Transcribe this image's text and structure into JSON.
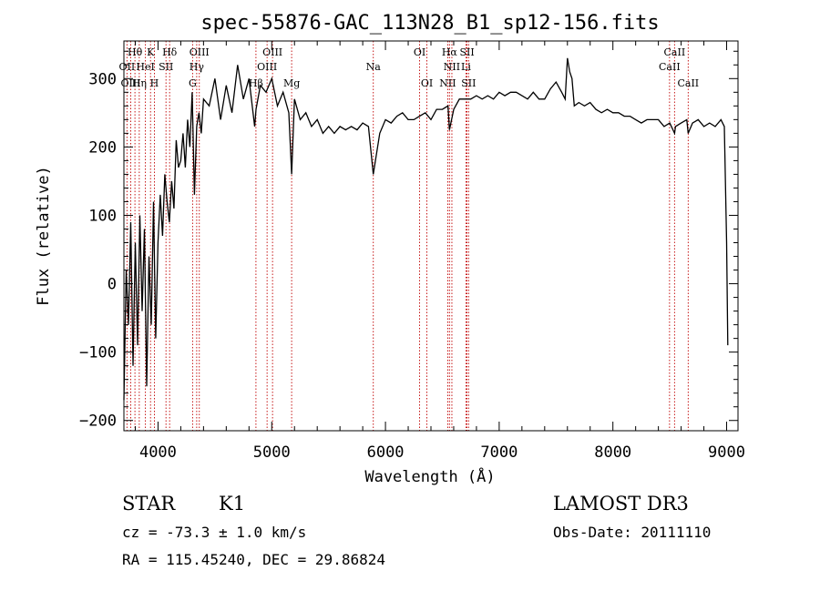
{
  "chart_data": {
    "type": "line",
    "title": "spec-55876-GAC_113N28_B1_sp12-156.fits",
    "xlabel": "Wavelength (Å)",
    "ylabel": "Flux (relative)",
    "xlim": [
      3700,
      9100
    ],
    "ylim": [
      -215,
      355
    ],
    "xticks": [
      4000,
      5000,
      6000,
      7000,
      8000,
      9000
    ],
    "yticks": [
      -200,
      -100,
      0,
      100,
      200,
      300
    ],
    "grid": false,
    "series": [
      {
        "color": "#000000",
        "x": [
          3700,
          3720,
          3740,
          3760,
          3780,
          3800,
          3820,
          3840,
          3860,
          3880,
          3900,
          3920,
          3940,
          3960,
          3980,
          4000,
          4020,
          4040,
          4060,
          4080,
          4100,
          4120,
          4140,
          4160,
          4180,
          4200,
          4220,
          4240,
          4260,
          4280,
          4300,
          4320,
          4340,
          4360,
          4380,
          4400,
          4450,
          4500,
          4550,
          4600,
          4650,
          4700,
          4750,
          4800,
          4850,
          4862,
          4900,
          4950,
          5000,
          5050,
          5100,
          5150,
          5175,
          5200,
          5250,
          5300,
          5350,
          5400,
          5450,
          5500,
          5550,
          5600,
          5650,
          5700,
          5750,
          5800,
          5850,
          5893,
          5950,
          6000,
          6050,
          6100,
          6150,
          6200,
          6250,
          6300,
          6350,
          6400,
          6450,
          6500,
          6550,
          6563,
          6600,
          6650,
          6700,
          6750,
          6800,
          6850,
          6900,
          6950,
          7000,
          7050,
          7100,
          7150,
          7200,
          7250,
          7300,
          7350,
          7400,
          7450,
          7500,
          7550,
          7580,
          7600,
          7620,
          7640,
          7660,
          7700,
          7750,
          7800,
          7850,
          7900,
          7950,
          8000,
          8050,
          8100,
          8150,
          8200,
          8250,
          8300,
          8350,
          8400,
          8450,
          8500,
          8542,
          8550,
          8600,
          8650,
          8662,
          8700,
          8750,
          8800,
          8850,
          8900,
          8950,
          8980,
          9000,
          9010
        ],
        "y": [
          -170,
          20,
          -60,
          90,
          -120,
          60,
          -90,
          100,
          -40,
          80,
          -150,
          40,
          -60,
          120,
          -80,
          60,
          130,
          70,
          160,
          120,
          90,
          150,
          110,
          210,
          170,
          180,
          220,
          170,
          240,
          200,
          280,
          130,
          230,
          250,
          220,
          270,
          260,
          300,
          240,
          290,
          250,
          320,
          270,
          300,
          230,
          255,
          290,
          280,
          300,
          260,
          280,
          250,
          160,
          270,
          240,
          250,
          230,
          240,
          220,
          230,
          220,
          230,
          225,
          230,
          225,
          235,
          230,
          160,
          220,
          240,
          235,
          245,
          250,
          240,
          240,
          245,
          250,
          240,
          255,
          255,
          260,
          225,
          255,
          270,
          270,
          270,
          275,
          270,
          275,
          270,
          280,
          275,
          280,
          280,
          275,
          270,
          280,
          270,
          270,
          285,
          295,
          280,
          270,
          330,
          310,
          300,
          260,
          265,
          260,
          265,
          255,
          250,
          255,
          250,
          250,
          245,
          245,
          240,
          235,
          240,
          240,
          240,
          230,
          235,
          220,
          230,
          235,
          240,
          220,
          235,
          240,
          230,
          235,
          230,
          240,
          230,
          60,
          -90
        ]
      }
    ],
    "line_labels": [
      {
        "label": "Hθ",
        "x": 3797,
        "row": 1
      },
      {
        "label": "K",
        "x": 3934,
        "row": 1
      },
      {
        "label": "Hδ",
        "x": 4102,
        "row": 1
      },
      {
        "label": "OIII",
        "x": 4363,
        "row": 1
      },
      {
        "label": "OIII",
        "x": 5007,
        "row": 1
      },
      {
        "label": "OI",
        "x": 6300,
        "row": 1
      },
      {
        "label": "Hα",
        "x": 6563,
        "row": 1
      },
      {
        "label": "SII",
        "x": 6717,
        "row": 1
      },
      {
        "label": "CaII",
        "x": 8542,
        "row": 1
      },
      {
        "label": "OII",
        "x": 3727,
        "row": 2
      },
      {
        "label": "HeI",
        "x": 3889,
        "row": 2
      },
      {
        "label": "SII",
        "x": 4070,
        "row": 2
      },
      {
        "label": "Hγ",
        "x": 4340,
        "row": 2
      },
      {
        "label": "OIII",
        "x": 4959,
        "row": 2
      },
      {
        "label": "Na",
        "x": 5893,
        "row": 2
      },
      {
        "label": "NII",
        "x": 6584,
        "row": 2
      },
      {
        "label": "Li",
        "x": 6708,
        "row": 2
      },
      {
        "label": "CaII",
        "x": 8498,
        "row": 2
      },
      {
        "label": "OIII",
        "x": 3760,
        "row": 3
      },
      {
        "label": "Hη",
        "x": 3835,
        "row": 3
      },
      {
        "label": "H",
        "x": 3968,
        "row": 3
      },
      {
        "label": "G",
        "x": 4304,
        "row": 3
      },
      {
        "label": "Hβ",
        "x": 4861,
        "row": 3
      },
      {
        "label": "Mg",
        "x": 5175,
        "row": 3
      },
      {
        "label": "OI",
        "x": 6364,
        "row": 3
      },
      {
        "label": "NII",
        "x": 6548,
        "row": 3
      },
      {
        "label": "SII",
        "x": 6731,
        "row": 3
      },
      {
        "label": "CaII",
        "x": 8662,
        "row": 3
      }
    ],
    "line_color": "#c00000"
  },
  "info": {
    "class": "STAR",
    "subclass": "K1",
    "survey": "LAMOST DR3",
    "cz": "cz = -73.3 ± 1.0 km/s",
    "obsdate": "Obs-Date: 20111110",
    "radec": "RA = 115.45240, DEC =  29.86824"
  }
}
